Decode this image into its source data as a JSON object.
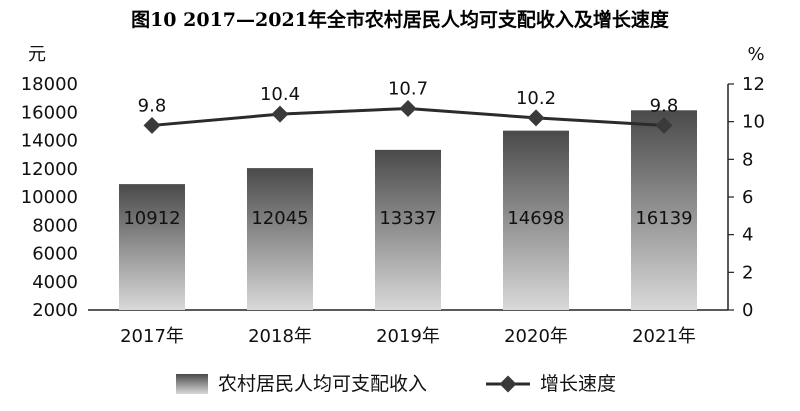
{
  "chart_data": {
    "type": "bar+line",
    "title": "图10  2017—2021年全市农村居民人均可支配收入及增长速度",
    "categories": [
      "2017年",
      "2018年",
      "2019年",
      "2020年",
      "2021年"
    ],
    "y_left": {
      "unit": "元",
      "min": 2000,
      "max": 18000,
      "ticks": [
        2000,
        4000,
        6000,
        8000,
        10000,
        12000,
        14000,
        16000,
        18000
      ]
    },
    "y_right": {
      "unit": "%",
      "min": 0,
      "max": 12,
      "ticks": [
        0,
        2,
        4,
        6,
        8,
        10,
        12
      ]
    },
    "series": [
      {
        "name": "农村居民人均可支配收入",
        "type": "bar",
        "axis": "left",
        "values": [
          10912,
          12045,
          13337,
          14698,
          16139
        ],
        "labels": [
          "10912",
          "12045",
          "13337",
          "14698",
          "16139"
        ]
      },
      {
        "name": "增长速度",
        "type": "line",
        "axis": "right",
        "values": [
          9.8,
          10.4,
          10.7,
          10.2,
          9.8
        ],
        "labels": [
          "9.8",
          "10.4",
          "10.7",
          "10.2",
          "9.8"
        ]
      }
    ],
    "legend": "bottom",
    "grid": false,
    "colors": {
      "bar_top": "#4a4a4a",
      "bar_bottom": "#d9d9d9",
      "line": "#2b2b2b",
      "marker": "#3a3a3a"
    }
  }
}
